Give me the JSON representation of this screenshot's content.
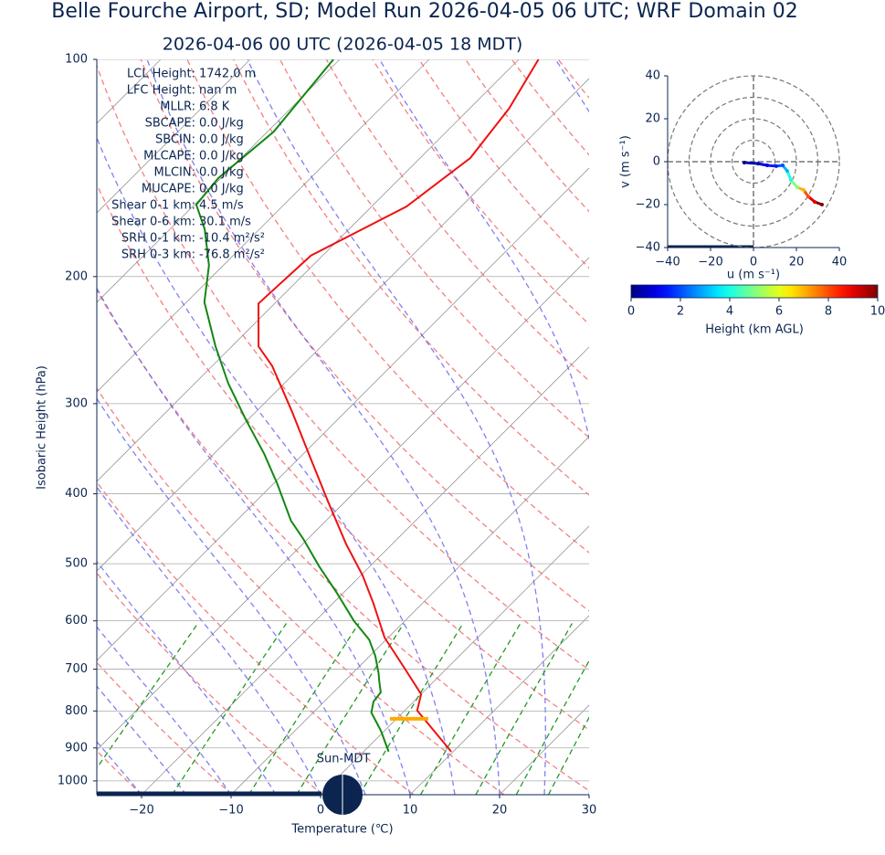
{
  "chart_data": [
    {
      "type": "skewt",
      "title": "Belle Fourche Airport, SD; Model Run 2026-04-05 06 UTC; WRF Domain 02",
      "subtitle": "2026-04-06 00 UTC  (2026-04-05 18 MDT)",
      "x_label": "Temperature (℃)",
      "y_label": "Isobaric Height (hPa)",
      "xlim": [
        -25,
        30
      ],
      "xticks": [
        {
          "value": -20,
          "label": "−20"
        },
        {
          "value": -10,
          "label": "−10"
        },
        0,
        10,
        20,
        30
      ],
      "ylim": [
        100,
        1045
      ],
      "yticks": [
        100,
        200,
        300,
        400,
        500,
        600,
        700,
        800,
        900,
        1000
      ],
      "log_y": true,
      "grid": true,
      "series": [
        {
          "color": "#ee1111",
          "pressure": [
            911,
            799,
            758,
            701,
            633,
            567,
            519,
            470,
            411,
            355,
            307,
            266,
            250,
            218,
            187,
            160,
            137,
            117,
            100
          ],
          "values": [
            9.8,
            1.4,
            0,
            -4.5,
            -10.4,
            -15.5,
            -19.8,
            -25.1,
            -31.8,
            -39.0,
            -46.1,
            -53.3,
            -57.0,
            -61.8,
            -61.3,
            -56.1,
            -54.4,
            -55.6,
            -57.8
          ]
        },
        {
          "color": "#118811",
          "pressure": [
            911,
            852,
            804,
            776,
            754,
            726,
            709,
            671,
            637,
            600,
            550,
            504,
            462,
            436,
            388,
            352,
            316,
            281,
            250,
            217,
            193,
            172,
            159,
            146,
            126,
            100
          ],
          "values": [
            2.8,
            -0.4,
            -3.5,
            -4.5,
            -4.7,
            -6.2,
            -7.1,
            -9.4,
            -11.9,
            -15.7,
            -20.6,
            -25.7,
            -30.5,
            -33.9,
            -39.5,
            -44.4,
            -50.2,
            -56.3,
            -61.8,
            -68.0,
            -71.6,
            -76.1,
            -79.8,
            -80.3,
            -79.3,
            -80.7
          ]
        }
      ],
      "lcl": {
        "pressure": 820,
        "temperature": 1.4,
        "color": "#ffaa00"
      },
      "indices": [
        [
          "LCL Height:",
          "1742.0 m"
        ],
        [
          "LFC Height:",
          "nan m"
        ],
        [
          "MLLR:",
          "6.8 K"
        ],
        [
          "SBCAPE:",
          "0.0 J/kg"
        ],
        [
          "SBCIN:",
          "0.0 J/kg"
        ],
        [
          "MLCAPE:",
          "0.0 J/kg"
        ],
        [
          "MLCIN:",
          "0.0 J/kg"
        ],
        [
          "MUCAPE:",
          "0.0 J/kg"
        ],
        [
          "Shear 0-1 km:",
          "4.5 m/s"
        ],
        [
          "Shear 0-6 km:",
          "30.1 m/s"
        ],
        [
          "SRH 0-1 km:",
          "-10.4 m²/s²"
        ],
        [
          "SRH 0-3 km:",
          "-76.8 m²/s²"
        ]
      ],
      "annotation": "Sun-MDT"
    },
    {
      "type": "hodograph",
      "x_label": "u (m s⁻¹)",
      "y_label": "v (m s⁻¹)",
      "xlim": [
        -40,
        40
      ],
      "ylim": [
        -40,
        40
      ],
      "xticks": [
        {
          "value": -40,
          "label": "−40"
        },
        {
          "value": -20,
          "label": "−20"
        },
        0,
        20,
        40
      ],
      "yticks": [
        {
          "value": -40,
          "label": "−40"
        },
        {
          "value": -20,
          "label": "−20"
        },
        0,
        20,
        40
      ],
      "u": [
        -4.3,
        2.1,
        6.4,
        10.6,
        13.6,
        15.7,
        17.4,
        20.4,
        23.4,
        25.5,
        28.5,
        31.9
      ],
      "v": [
        -0.4,
        -0.9,
        -1.7,
        -2.1,
        -1.7,
        -4.3,
        -8.5,
        -11.9,
        -13.2,
        -16.2,
        -18.7,
        -20
      ],
      "height": [
        0,
        0.5,
        1,
        1.5,
        2,
        3,
        4,
        5,
        7,
        8,
        9,
        10
      ],
      "colorbar_label": "Height (km AGL)",
      "clim": [
        0,
        10
      ],
      "colorbar_ticks": [
        0,
        2,
        4,
        6,
        8,
        10
      ]
    }
  ]
}
